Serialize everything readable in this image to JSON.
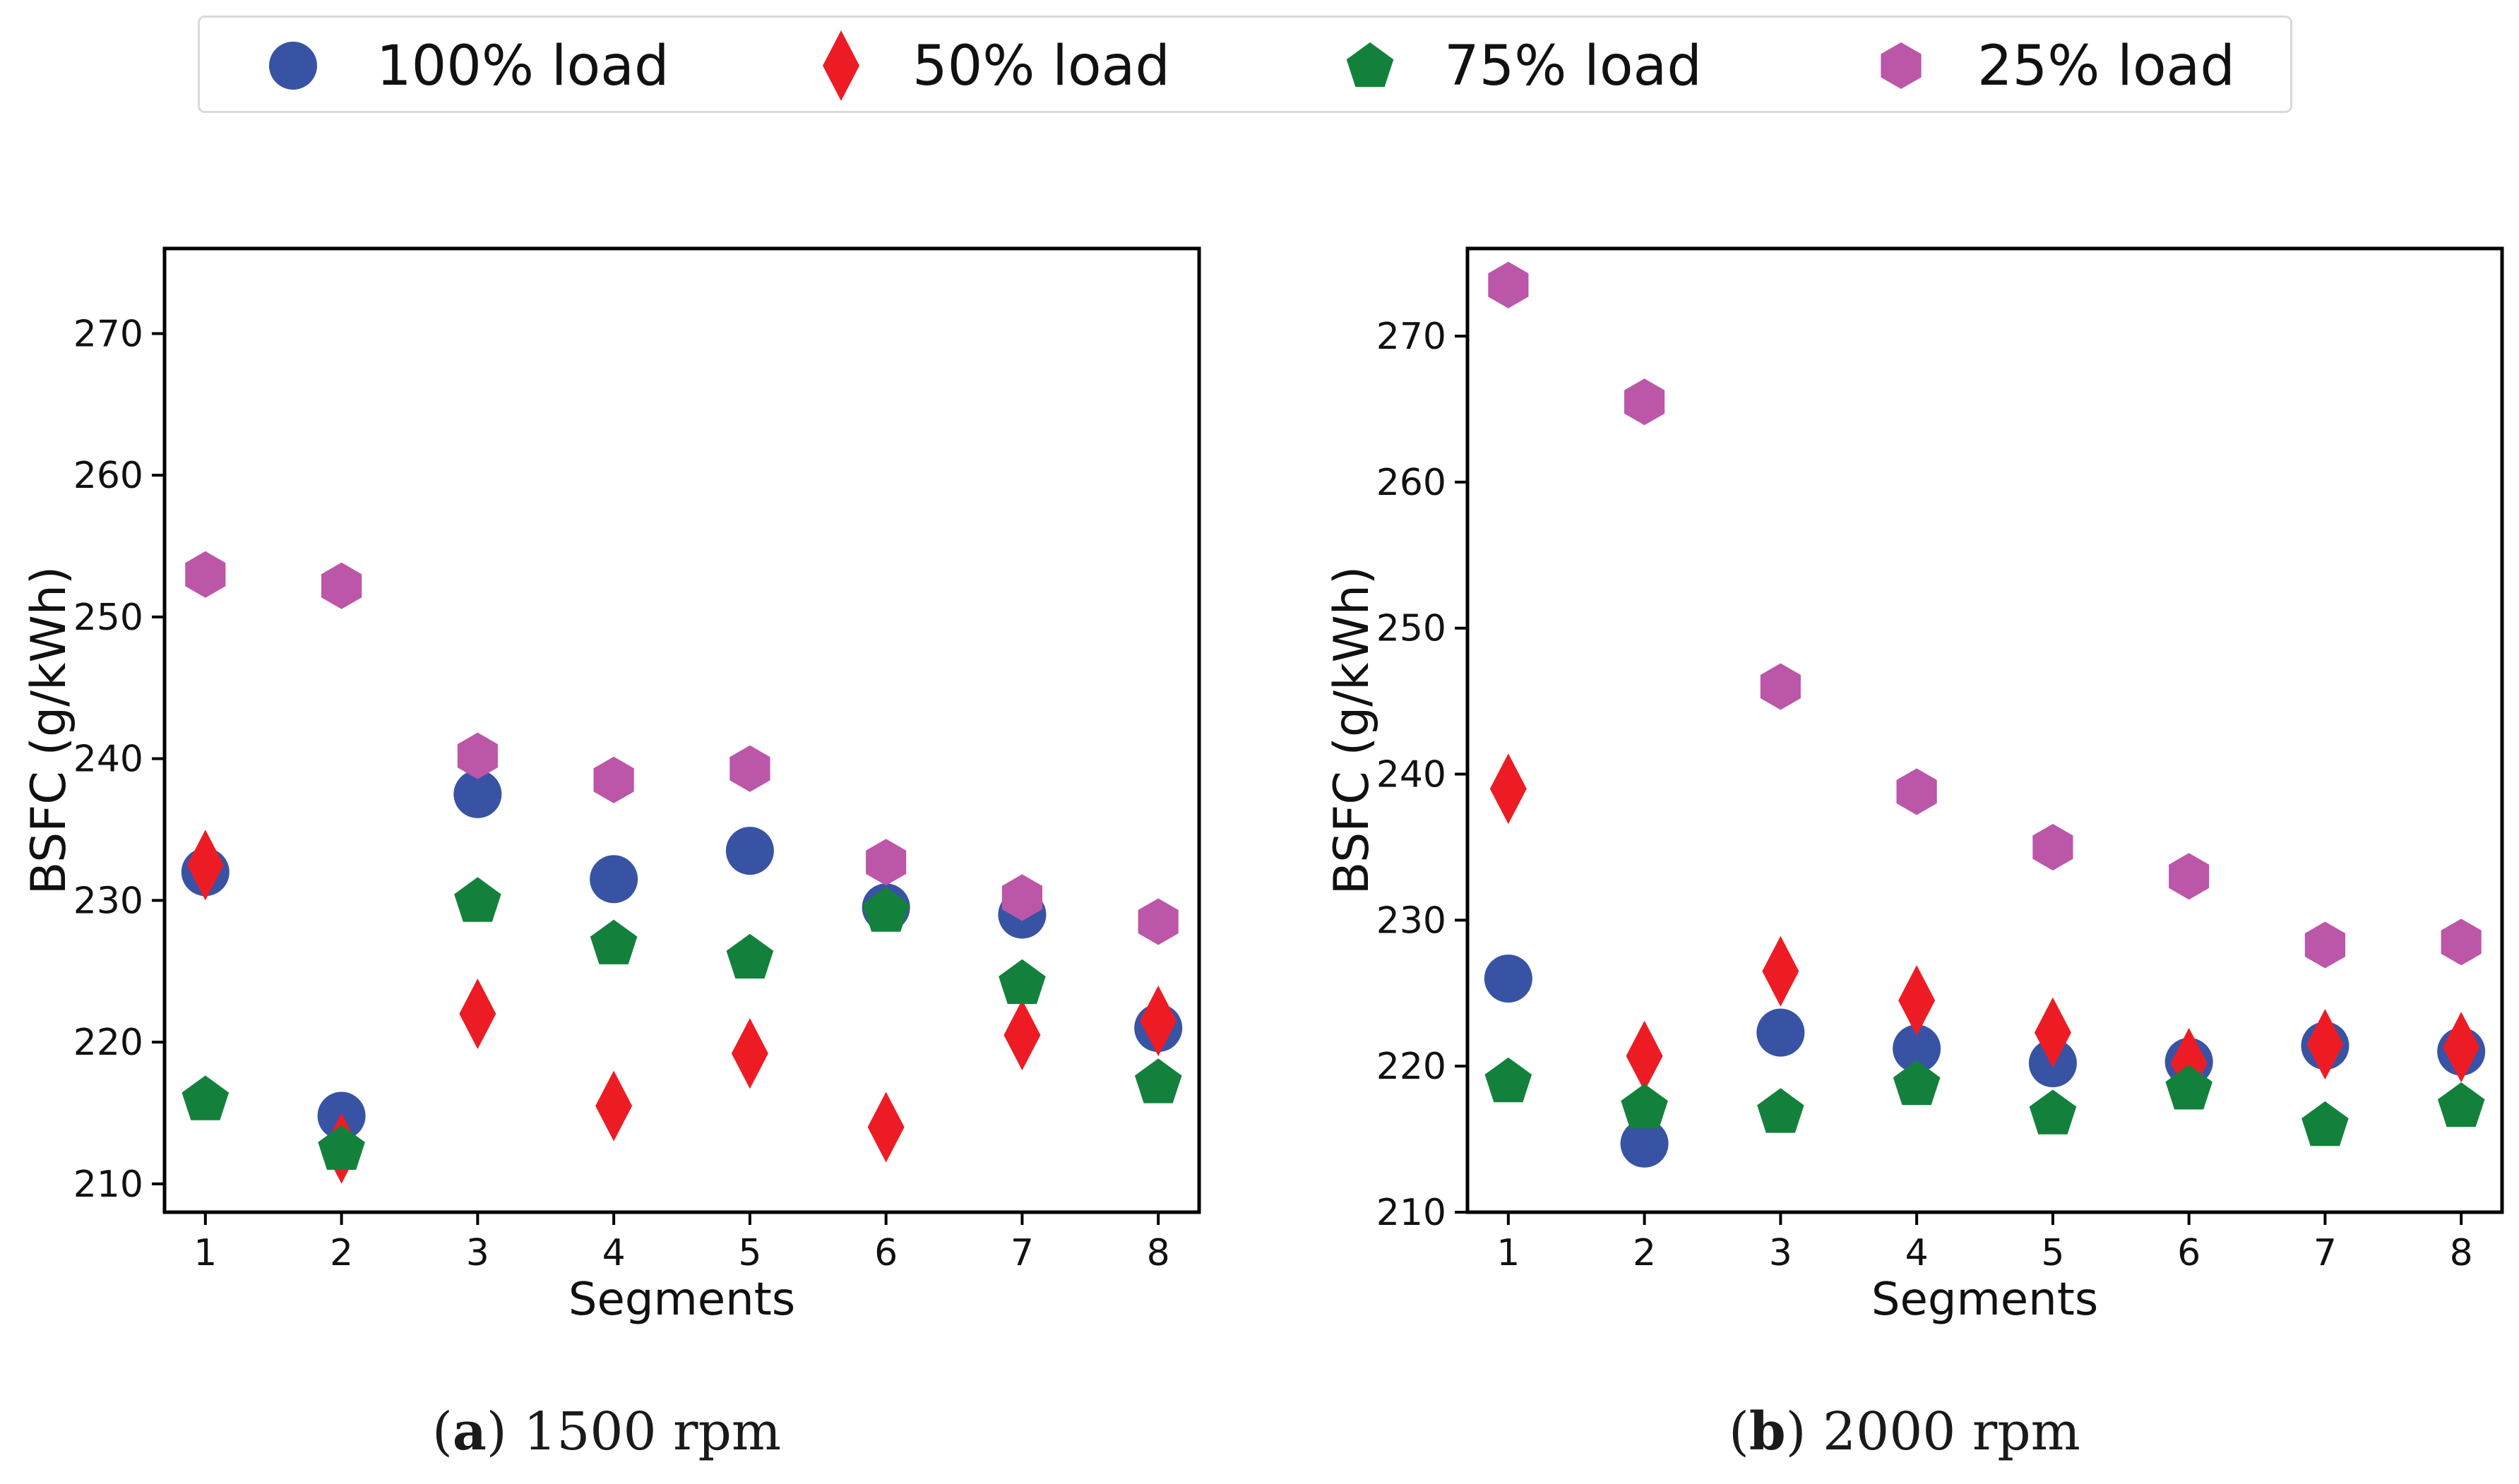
{
  "legend": {
    "items": [
      {
        "label": "100% load",
        "marker": "circle",
        "color": "#3953a4"
      },
      {
        "label": "50% load",
        "marker": "diamond",
        "color": "#ed1c24"
      },
      {
        "label": "75% load",
        "marker": "pentagon",
        "color": "#13813c"
      },
      {
        "label": "25% load",
        "marker": "hexagon",
        "color": "#bc56a8"
      }
    ]
  },
  "captions": {
    "a": {
      "letter": "a",
      "text": "1500 rpm"
    },
    "b": {
      "letter": "b",
      "text": "2000 rpm"
    }
  },
  "chart_data": [
    {
      "type": "scatter",
      "title": "(a) 1500 rpm",
      "xlabel": "Segments",
      "ylabel": "BSFC (g/kWh)",
      "x": [
        1,
        2,
        3,
        4,
        5,
        6,
        7,
        8
      ],
      "xlim": [
        0.7,
        8.3
      ],
      "ylim": [
        208,
        276
      ],
      "yticks": [
        210,
        220,
        230,
        240,
        250,
        260,
        270
      ],
      "xticks": [
        1,
        2,
        3,
        4,
        5,
        6,
        7,
        8
      ],
      "grid": false,
      "series": [
        {
          "name": "100% load",
          "marker": "circle",
          "color": "#3953a4",
          "values": [
            232,
            214.8,
            237.5,
            231.5,
            233.5,
            229.5,
            229,
            221
          ]
        },
        {
          "name": "50% load",
          "marker": "diamond",
          "color": "#ed1c24",
          "values": [
            232.5,
            212.5,
            222,
            215.5,
            219.2,
            214,
            220.5,
            221.5
          ]
        },
        {
          "name": "75% load",
          "marker": "pentagon",
          "color": "#13813c",
          "values": [
            216,
            212.5,
            230,
            227,
            226,
            229.3,
            224.2,
            217.2
          ]
        },
        {
          "name": "25% load",
          "marker": "hexagon",
          "color": "#bc56a8",
          "values": [
            253,
            252.2,
            240.2,
            238.5,
            239.3,
            232.7,
            230.2,
            228.5
          ]
        }
      ]
    },
    {
      "type": "scatter",
      "title": "(b) 2000 rpm",
      "xlabel": "Segments",
      "ylabel": "BSFC (g/kWh)",
      "x": [
        1,
        2,
        3,
        4,
        5,
        6,
        7,
        8
      ],
      "xlim": [
        0.7,
        8.3
      ],
      "ylim": [
        210,
        276
      ],
      "yticks": [
        210,
        220,
        230,
        240,
        250,
        260,
        270
      ],
      "xticks": [
        1,
        2,
        3,
        4,
        5,
        6,
        7,
        8
      ],
      "grid": false,
      "series": [
        {
          "name": "100% load",
          "marker": "circle",
          "color": "#3953a4",
          "values": [
            226,
            214.7,
            222.3,
            221.2,
            220.2,
            220.3,
            221.4,
            221
          ]
        },
        {
          "name": "50% load",
          "marker": "diamond",
          "color": "#ed1c24",
          "values": [
            239,
            220.7,
            226.5,
            224.5,
            222.3,
            220.2,
            221.5,
            221.3
          ]
        },
        {
          "name": "75% load",
          "marker": "pentagon",
          "color": "#13813c",
          "values": [
            219,
            217.2,
            216.9,
            218.8,
            216.8,
            218.5,
            216,
            217.3
          ]
        },
        {
          "name": "25% load",
          "marker": "hexagon",
          "color": "#bc56a8",
          "values": [
            273.5,
            265.5,
            246,
            238.8,
            235,
            233,
            228.3,
            228.5
          ]
        }
      ]
    }
  ]
}
